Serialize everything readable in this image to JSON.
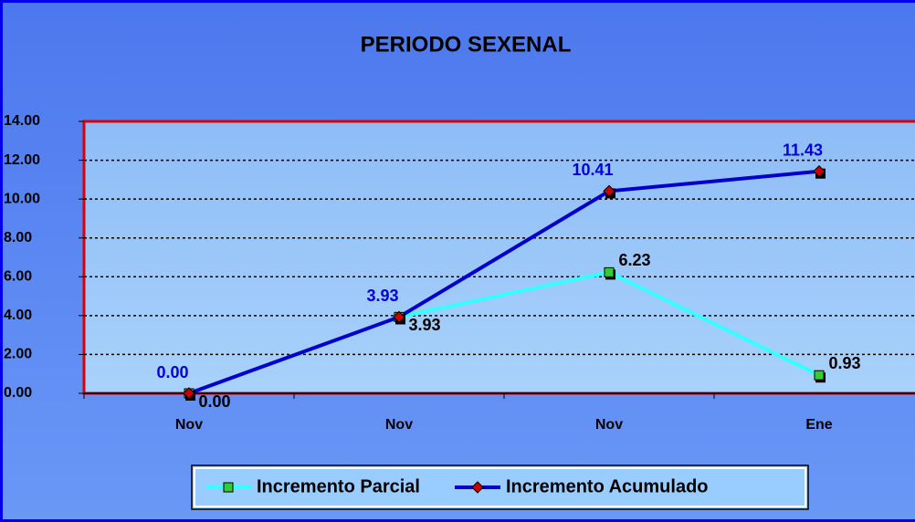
{
  "chart_data": {
    "type": "line",
    "title": "PERIODO SEXENAL",
    "categories": [
      "Nov",
      "Nov",
      "Nov",
      "Ene"
    ],
    "series": [
      {
        "name": "Incremento Parcial",
        "color": "#33ffff",
        "marker_color": "#33cc33",
        "values": [
          0,
          3.93,
          6.23,
          0.93
        ],
        "value_labels": [
          "0.00",
          "3.93",
          "6.23",
          "0.93"
        ]
      },
      {
        "name": "Incremento Acumulado",
        "color": "#0000cc",
        "marker_color": "#cc0000",
        "values": [
          0,
          3.93,
          10.41,
          11.43
        ],
        "value_labels": [
          "0.00",
          "3.93",
          "10.41",
          "11.43"
        ]
      }
    ],
    "ylim": [
      0,
      14
    ],
    "yticks": [
      {
        "value": 0,
        "label": "0.00"
      },
      {
        "value": 2,
        "label": "2.00"
      },
      {
        "value": 4,
        "label": "4.00"
      },
      {
        "value": 6,
        "label": "6.00"
      },
      {
        "value": 8,
        "label": "8.00"
      },
      {
        "value": 10,
        "label": "10.00"
      },
      {
        "value": 12,
        "label": "12.00"
      },
      {
        "value": 14,
        "label": "14.00"
      }
    ],
    "grid": true,
    "legend": "bottom"
  }
}
